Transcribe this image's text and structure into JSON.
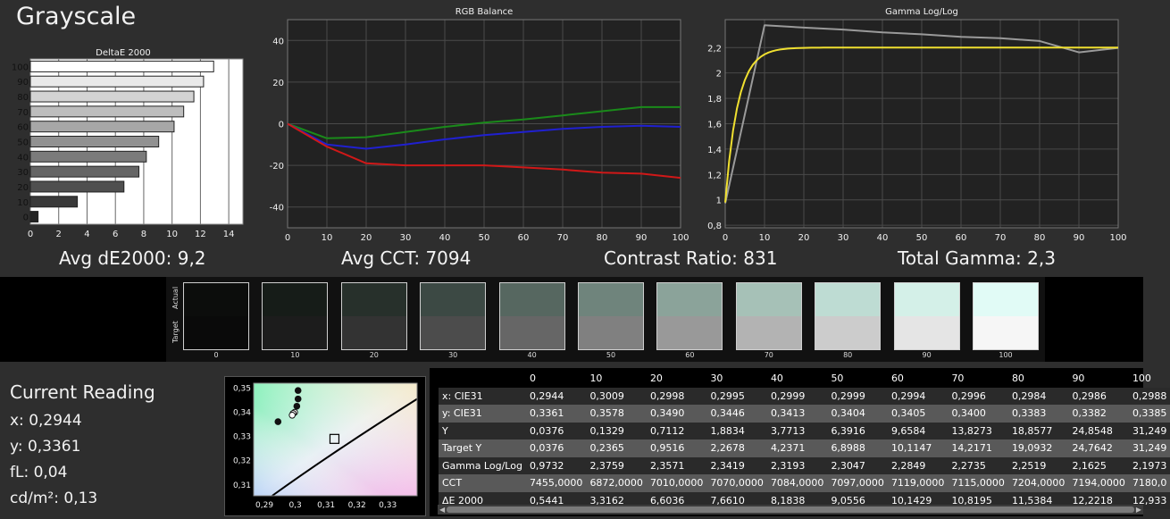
{
  "title": "Grayscale",
  "summary": {
    "avg_de": "Avg dE2000: 9,2",
    "avg_cct": "Avg CCT: 7094",
    "contrast": "Contrast Ratio: 831",
    "gamma": "Total Gamma: 2,3"
  },
  "swatch_strip": {
    "actual_label": "Actual",
    "target_label": "Target",
    "levels": [
      {
        "label": "0",
        "actual": "#0c0d0c",
        "target": "#0a0a0a"
      },
      {
        "label": "10",
        "actual": "#161c18",
        "target": "#1c1c1c"
      },
      {
        "label": "20",
        "actual": "#27302b",
        "target": "#333333"
      },
      {
        "label": "30",
        "actual": "#3c4944",
        "target": "#4c4c4c"
      },
      {
        "label": "40",
        "actual": "#566760",
        "target": "#666666"
      },
      {
        "label": "50",
        "actual": "#6f847c",
        "target": "#808080"
      },
      {
        "label": "60",
        "actual": "#8ba39a",
        "target": "#999999"
      },
      {
        "label": "70",
        "actual": "#a6c1b7",
        "target": "#b3b3b3"
      },
      {
        "label": "80",
        "actual": "#bedcd3",
        "target": "#cccccc"
      },
      {
        "label": "90",
        "actual": "#d4f0e8",
        "target": "#e5e5e5"
      },
      {
        "label": "100",
        "actual": "#e1fbf6",
        "target": "#f6f6f6"
      }
    ]
  },
  "current_reading": {
    "title": "Current Reading",
    "x": "x: 0,2944",
    "y": "y: 0,3361",
    "fl": "fL: 0,04",
    "cdm2": "cd/m²: 0,13"
  },
  "table": {
    "columns": [
      "0",
      "10",
      "20",
      "30",
      "40",
      "50",
      "60",
      "70",
      "80",
      "90",
      "100"
    ],
    "rows": [
      {
        "label": "x: CIE31",
        "values": [
          "0,2944",
          "0,3009",
          "0,2998",
          "0,2995",
          "0,2999",
          "0,2999",
          "0,2994",
          "0,2996",
          "0,2984",
          "0,2986",
          "0,2988"
        ]
      },
      {
        "label": "y: CIE31",
        "values": [
          "0,3361",
          "0,3578",
          "0,3490",
          "0,3446",
          "0,3413",
          "0,3404",
          "0,3405",
          "0,3400",
          "0,3383",
          "0,3382",
          "0,3385"
        ]
      },
      {
        "label": "Y",
        "values": [
          "0,0376",
          "0,1329",
          "0,7112",
          "1,8834",
          "3,7713",
          "6,3916",
          "9,6584",
          "13,8273",
          "18,8577",
          "24,8548",
          "31,249"
        ]
      },
      {
        "label": "Target Y",
        "values": [
          "0,0376",
          "0,2365",
          "0,9516",
          "2,2678",
          "4,2371",
          "6,8988",
          "10,1147",
          "14,2171",
          "19,0932",
          "24,7642",
          "31,249"
        ]
      },
      {
        "label": "Gamma Log/Log",
        "values": [
          "0,9732",
          "2,3759",
          "2,3571",
          "2,3419",
          "2,3193",
          "2,3047",
          "2,2849",
          "2,2735",
          "2,2519",
          "2,1625",
          "2,1973"
        ]
      },
      {
        "label": "CCT",
        "values": [
          "7455,0000",
          "6872,0000",
          "7010,0000",
          "7070,0000",
          "7084,0000",
          "7097,0000",
          "7119,0000",
          "7115,0000",
          "7204,0000",
          "7194,0000",
          "7180,0"
        ]
      },
      {
        "label": "ΔE 2000",
        "values": [
          "0,5441",
          "3,3162",
          "6,6036",
          "7,6610",
          "8,1838",
          "9,0556",
          "10,1429",
          "10,8195",
          "11,5384",
          "12,2218",
          "12,933"
        ]
      }
    ]
  },
  "chart_data": [
    {
      "type": "bar",
      "orientation": "horizontal",
      "title": "DeltaE 2000",
      "categories": [
        "100",
        "90",
        "80",
        "70",
        "60",
        "50",
        "40",
        "30",
        "20",
        "10",
        "0"
      ],
      "values": [
        12.933,
        12.222,
        11.538,
        10.82,
        10.143,
        9.056,
        8.184,
        7.661,
        6.604,
        3.316,
        0.544
      ],
      "xlim": [
        0,
        15
      ],
      "xticks": [
        "0",
        "2",
        "4",
        "6",
        "8",
        "10",
        "12",
        "14"
      ],
      "grid": true
    },
    {
      "type": "line",
      "title": "RGB Balance",
      "x": [
        0,
        10,
        20,
        30,
        40,
        50,
        60,
        70,
        80,
        90,
        100
      ],
      "xticks": [
        "0",
        "10",
        "20",
        "30",
        "40",
        "50",
        "60",
        "70",
        "80",
        "90",
        "100"
      ],
      "yticks": [
        "40",
        "20",
        "0",
        "-20",
        "-40"
      ],
      "ylim": [
        -50,
        50
      ],
      "grid": true,
      "series": [
        {
          "color": "#1a8a1a",
          "values": [
            0,
            -7,
            -6.5,
            -4,
            -1.5,
            0.5,
            2,
            4,
            6,
            8,
            8
          ]
        },
        {
          "color": "#2020d0",
          "values": [
            0,
            -10,
            -12,
            -10,
            -7.5,
            -5.5,
            -4,
            -2.5,
            -1.5,
            -1,
            -1.5
          ]
        },
        {
          "color": "#d01818",
          "values": [
            0,
            -11,
            -19,
            -20,
            -20,
            -20,
            -21,
            -22,
            -23.5,
            -24,
            -26
          ]
        }
      ]
    },
    {
      "type": "line",
      "title": "Gamma Log/Log",
      "x": [
        0,
        10,
        20,
        30,
        40,
        50,
        60,
        70,
        80,
        90,
        100
      ],
      "xticks": [
        "0",
        "10",
        "20",
        "30",
        "40",
        "50",
        "60",
        "70",
        "80",
        "90",
        "100"
      ],
      "yticks": [
        "2,2",
        "2",
        "1,8",
        "1,6",
        "1,4",
        "1,2",
        "1",
        "0,8"
      ],
      "ylim": [
        0.78,
        2.42
      ],
      "grid": true,
      "series": [
        {
          "color": "#9a9a9a",
          "values": [
            0.9732,
            2.3759,
            2.3571,
            2.3419,
            2.3193,
            2.3047,
            2.2849,
            2.2735,
            2.2519,
            2.1625,
            2.1973
          ]
        },
        {
          "color": "#f0e030",
          "values": [
            0.98,
            2.12,
            2.18,
            2.19,
            2.195,
            2.2,
            2.2,
            2.2,
            2.2,
            2.2,
            2.2
          ]
        }
      ]
    },
    {
      "type": "scatter",
      "xticks": [
        "0,29",
        "0,3",
        "0,31",
        "0,32",
        "0,33"
      ],
      "yticks": [
        "0,35",
        "0,34",
        "0,33",
        "0,32",
        "0,31"
      ],
      "xlim": [
        0.2865,
        0.3395
      ],
      "ylim": [
        0.3055,
        0.352
      ],
      "points": [
        {
          "x": 0.2944,
          "y": 0.3361,
          "style": "black"
        },
        {
          "x": 0.3009,
          "y": 0.349,
          "style": "black"
        },
        {
          "x": 0.3009,
          "y": 0.3455,
          "style": "black"
        },
        {
          "x": 0.3005,
          "y": 0.3425,
          "style": "black"
        },
        {
          "x": 0.2998,
          "y": 0.34,
          "style": "white"
        },
        {
          "x": 0.2993,
          "y": 0.3395,
          "style": "white"
        },
        {
          "x": 0.299,
          "y": 0.3388,
          "style": "white"
        }
      ],
      "target": {
        "x": 0.3127,
        "y": 0.329
      },
      "locus": [
        [
          0.2925,
          0.3055
        ],
        [
          0.3127,
          0.324
        ],
        [
          0.3395,
          0.3455
        ]
      ]
    }
  ]
}
